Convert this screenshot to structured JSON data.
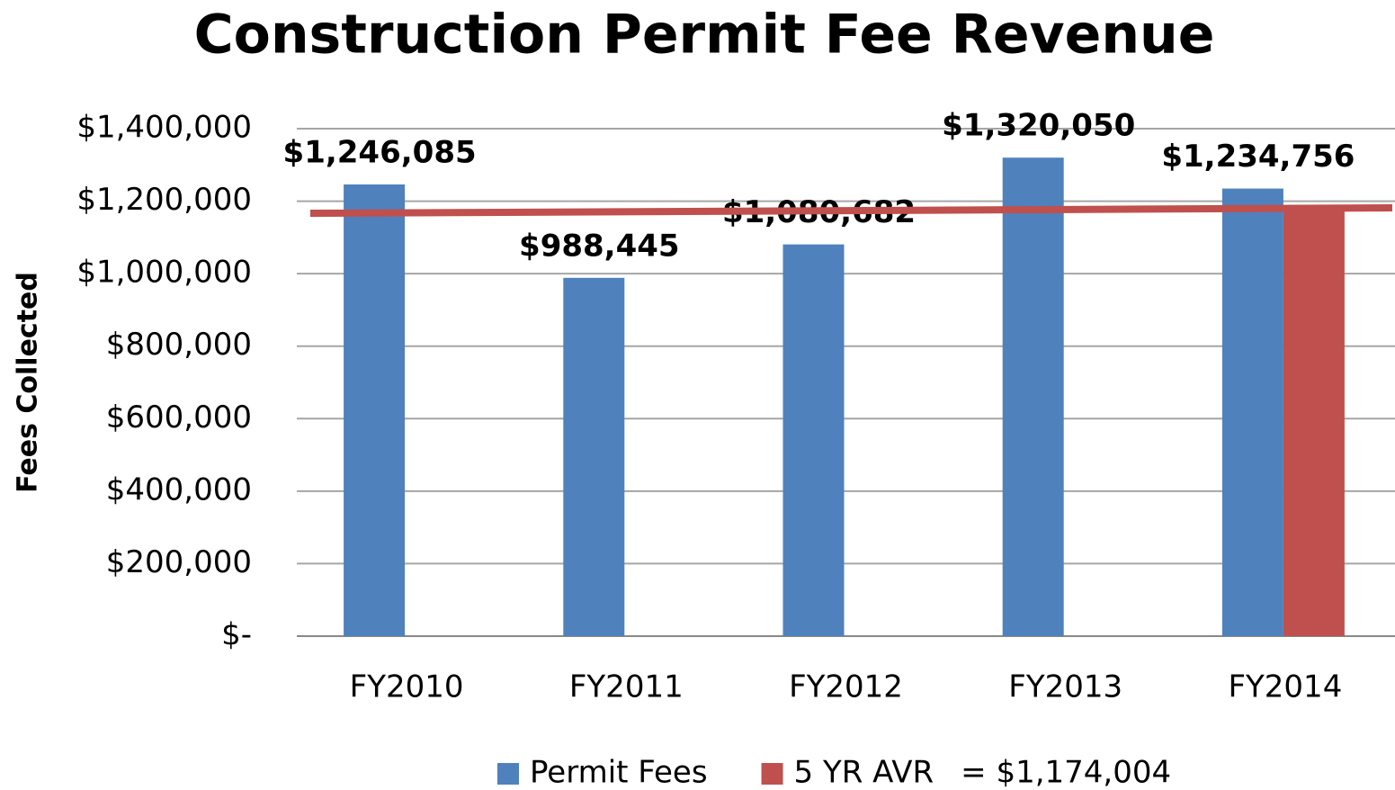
{
  "chart_data": {
    "type": "bar",
    "title": "Construction Permit Fee Revenue",
    "y_label": "Fees Collected",
    "categories": [
      "FY2010",
      "FY2011",
      "FY2012",
      "FY2013",
      "FY2014"
    ],
    "series": [
      {
        "name": "Permit Fees",
        "color": "#4f81bd",
        "values": [
          1246085,
          988445,
          1080682,
          1320050,
          1234756
        ],
        "value_labels": [
          "$1,246,085",
          "$988,445",
          "$1,080,682",
          "$1,320,050",
          "$1,234,756"
        ]
      },
      {
        "name": "5 YR AVR",
        "color": "#c0504d",
        "values": [
          null,
          null,
          null,
          null,
          1174004
        ]
      }
    ],
    "annotation": "= $1,174,004",
    "ylim": [
      0,
      1400000
    ],
    "yticks": [
      {
        "value": 0,
        "label": "$-"
      },
      {
        "value": 200000,
        "label": "$200,000"
      },
      {
        "value": 400000,
        "label": "$400,000"
      },
      {
        "value": 600000,
        "label": "$600,000"
      },
      {
        "value": 800000,
        "label": "$800,000"
      },
      {
        "value": 1000000,
        "label": "$1,000,000"
      },
      {
        "value": 1200000,
        "label": "$1,200,000"
      },
      {
        "value": 1400000,
        "label": "$1,400,000"
      }
    ],
    "grid": true
  }
}
